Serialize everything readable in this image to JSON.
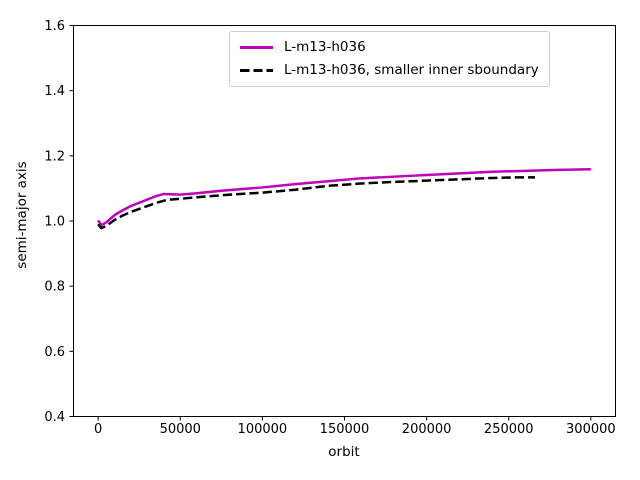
{
  "chart_data": {
    "type": "line",
    "title": "",
    "xlabel": "orbit",
    "ylabel": "semi-major axis",
    "xlim": [
      -15000,
      315000
    ],
    "ylim": [
      0.4,
      1.6
    ],
    "xticks": [
      0,
      50000,
      100000,
      150000,
      200000,
      250000,
      300000
    ],
    "xtick_labels": [
      "0",
      "50000",
      "100000",
      "150000",
      "200000",
      "250000",
      "300000"
    ],
    "yticks": [
      0.4,
      0.6,
      0.8,
      1.0,
      1.2,
      1.4,
      1.6
    ],
    "ytick_labels": [
      "0.4",
      "0.6",
      "0.8",
      "1.0",
      "1.2",
      "1.4",
      "1.6"
    ],
    "grid": false,
    "legend_position": "upper center",
    "series": [
      {
        "name": "L-m13-h036",
        "color": "#bf00bf",
        "line_style": "solid",
        "line_width": 2.5,
        "x": [
          0,
          2000,
          5000,
          10000,
          15000,
          20000,
          25000,
          30000,
          35000,
          40000,
          50000,
          60000,
          75000,
          90000,
          100000,
          120000,
          140000,
          160000,
          180000,
          200000,
          220000,
          240000,
          260000,
          280000,
          300000
        ],
        "y": [
          1.002,
          0.987,
          0.996,
          1.018,
          1.033,
          1.046,
          1.056,
          1.066,
          1.076,
          1.083,
          1.081,
          1.085,
          1.093,
          1.099,
          1.103,
          1.113,
          1.122,
          1.131,
          1.136,
          1.141,
          1.146,
          1.151,
          1.154,
          1.157,
          1.159
        ]
      },
      {
        "name": "L-m13-h036, smaller inner sboundary",
        "color": "#000000",
        "line_style": "dashed",
        "line_width": 2.5,
        "x": [
          0,
          2000,
          5000,
          10000,
          15000,
          20000,
          25000,
          30000,
          35000,
          42000,
          50000,
          60000,
          75000,
          90000,
          100000,
          120000,
          140000,
          160000,
          180000,
          200000,
          220000,
          240000,
          255000,
          266000
        ],
        "y": [
          0.99,
          0.978,
          0.985,
          1.003,
          1.017,
          1.028,
          1.037,
          1.046,
          1.055,
          1.065,
          1.068,
          1.073,
          1.079,
          1.084,
          1.087,
          1.096,
          1.108,
          1.115,
          1.12,
          1.124,
          1.128,
          1.132,
          1.134,
          1.134
        ]
      }
    ]
  },
  "colors": {
    "background": "#ffffff",
    "axis": "#000000",
    "legend_border": "#cccccc",
    "accent": "#bf00bf"
  }
}
